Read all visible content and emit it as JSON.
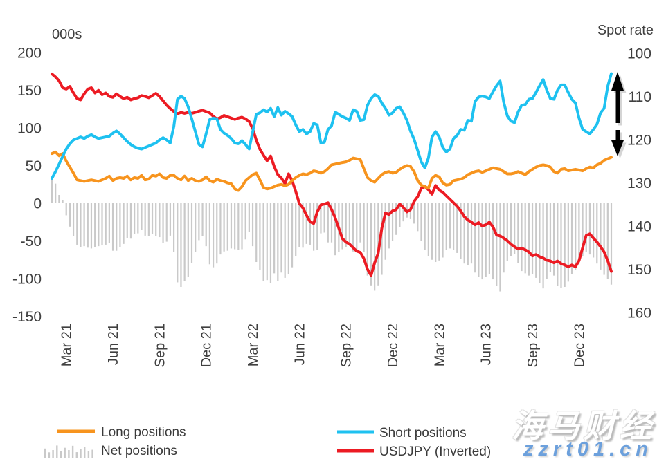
{
  "watermark": {
    "line1": "海马财经",
    "line2": "zzrt01.cn",
    "accent_color": "#6ca0dc"
  },
  "legend": {
    "long_label": "Long positions",
    "net_label": "Net positions",
    "short_label": "Short positions",
    "usdjpy_label": "USDJPY (Inverted)"
  },
  "colors": {
    "long": "#f7941e",
    "short": "#1ec1f0",
    "usdjpy": "#ec1b23",
    "net_bars": "#c9c9c9",
    "text": "#404040",
    "arrow": "#000000"
  },
  "chart_data": {
    "type": "line",
    "title": "",
    "left_axis_title": "000s",
    "right_axis_title": "Spot rate",
    "x_unit": "weekly, Feb 2021 - Feb 2024",
    "x_tick_labels": [
      "Mar 21",
      "Jun 21",
      "Sep 21",
      "Dec 21",
      "Mar 22",
      "Jun 22",
      "Sep 22",
      "Dec 22",
      "Mar 23",
      "Jun 23",
      "Sep 23",
      "Dec 23"
    ],
    "x_tick_indices": [
      4,
      17,
      30,
      43,
      56,
      69,
      82,
      95,
      108,
      121,
      134,
      147
    ],
    "left_axis": {
      "tick_values": [
        200,
        150,
        100,
        50,
        0,
        -50,
        -100,
        -150
      ],
      "range": [
        -175,
        200
      ],
      "grid": false
    },
    "right_axis": {
      "tick_values": [
        100,
        110,
        120,
        130,
        140,
        150,
        160
      ],
      "range": [
        100,
        163
      ],
      "inverted_note": "USDJPY plotted on inverted spot scale",
      "grid": false
    },
    "series": [
      {
        "name": "Net positions",
        "type": "bar",
        "axis": "left",
        "color": "#c9c9c9",
        "values": [
          33,
          26,
          11,
          4,
          -16,
          -31,
          -44,
          -55,
          -58,
          -57,
          -59,
          -60,
          -58,
          -57,
          -56,
          -55,
          -53,
          -63,
          -63,
          -58,
          -54,
          -46,
          -47,
          -41,
          -40,
          -35,
          -43,
          -44,
          -41,
          -44,
          -45,
          -53,
          -51,
          -43,
          -65,
          -105,
          -111,
          -103,
          -98,
          -79,
          -65,
          -49,
          -44,
          -57,
          -81,
          -85,
          -80,
          -68,
          -64,
          -63,
          -60,
          -61,
          -62,
          -61,
          -48,
          -38,
          -57,
          -78,
          -89,
          -103,
          -102,
          -106,
          -93,
          -103,
          -92,
          -99,
          -94,
          -85,
          -70,
          -58,
          -59,
          -54,
          -55,
          -63,
          -62,
          -40,
          -39,
          -52,
          -52,
          -69,
          -65,
          -61,
          -58,
          -53,
          -64,
          -63,
          -52,
          -65,
          -96,
          -109,
          -116,
          -109,
          -95,
          -75,
          -60,
          -50,
          -42,
          -32,
          -24,
          -19,
          -21,
          -27,
          -37,
          -50,
          -62,
          -70,
          -75,
          -78,
          -76,
          -72,
          -62,
          -60,
          -62,
          -66,
          -74,
          -80,
          -82,
          -80,
          -92,
          -98,
          -101,
          -98,
          -94,
          -101,
          -110,
          -117,
          -92,
          -77,
          -70,
          -67,
          -79,
          -90,
          -93,
          -96,
          -94,
          -99,
          -106,
          -113,
          -100,
          -91,
          -96,
          -110,
          -112,
          -111,
          -104,
          -94,
          -88,
          -80,
          -70,
          -65,
          -68,
          -72,
          -80,
          -88,
          -95,
          -100,
          -108
        ]
      },
      {
        "name": "USDJPY (Inverted)",
        "type": "line",
        "axis": "right",
        "color": "#ec1b23",
        "values": [
          104.8,
          105.5,
          106.4,
          108.0,
          108.3,
          107.7,
          109.2,
          110.5,
          110.8,
          109.4,
          108.3,
          108.0,
          109.2,
          108.6,
          109.6,
          109.2,
          110.0,
          110.2,
          109.4,
          110.0,
          110.5,
          110.2,
          110.8,
          110.5,
          110.3,
          109.8,
          110.0,
          110.3,
          109.8,
          109.3,
          110.0,
          111.0,
          112.0,
          112.8,
          113.5,
          114.0,
          113.7,
          113.9,
          113.7,
          113.9,
          113.7,
          113.4,
          113.2,
          113.5,
          113.8,
          114.6,
          115.2,
          114.9,
          114.4,
          114.7,
          115.0,
          115.3,
          115.0,
          114.8,
          115.2,
          115.8,
          117.5,
          120.1,
          122.2,
          123.6,
          124.9,
          123.8,
          126.2,
          128.1,
          128.9,
          130.2,
          127.9,
          129.5,
          132.0,
          134.8,
          135.8,
          137.5,
          139.0,
          139.4,
          136.7,
          135.1,
          134.9,
          134.6,
          136.2,
          138.1,
          140.5,
          142.9,
          143.7,
          144.2,
          145.0,
          145.8,
          146.1,
          147.5,
          150.0,
          151.4,
          148.5,
          146.3,
          140.5,
          137.0,
          137.3,
          136.5,
          136.2,
          134.9,
          135.7,
          136.7,
          136.2,
          134.3,
          133.2,
          131.3,
          130.8,
          131.6,
          132.6,
          130.6,
          131.7,
          132.2,
          133.0,
          133.8,
          134.6,
          135.4,
          136.5,
          137.8,
          138.6,
          139.1,
          139.7,
          139.2,
          140.0,
          139.7,
          139.1,
          140.2,
          142.1,
          142.3,
          142.8,
          143.4,
          144.2,
          144.8,
          145.3,
          145.1,
          145.5,
          146.0,
          146.9,
          146.6,
          147.1,
          147.4,
          147.9,
          148.1,
          148.5,
          148.1,
          148.7,
          149.0,
          149.4,
          149.0,
          149.4,
          148.0,
          145.0,
          142.2,
          141.8,
          142.8,
          143.7,
          144.8,
          146.0,
          148.0,
          150.5
        ]
      },
      {
        "name": "Long positions",
        "type": "line",
        "axis": "left",
        "color": "#f7941e",
        "values": [
          66,
          68,
          63,
          66,
          56,
          48,
          40,
          31,
          30,
          29,
          30,
          31,
          30,
          29,
          31,
          33,
          36,
          30,
          33,
          34,
          33,
          36,
          31,
          34,
          33,
          37,
          31,
          32,
          37,
          36,
          39,
          34,
          33,
          37,
          37,
          33,
          31,
          36,
          30,
          33,
          30,
          29,
          31,
          35,
          30,
          28,
          32,
          30,
          29,
          27,
          26,
          19,
          17,
          22,
          30,
          34,
          38,
          40,
          31,
          21,
          19,
          20,
          22,
          24,
          25,
          23,
          25,
          30,
          34,
          37,
          39,
          38,
          40,
          43,
          42,
          40,
          42,
          46,
          51,
          52,
          53,
          54,
          55,
          57,
          60,
          59,
          58,
          46,
          34,
          30,
          28,
          33,
          38,
          41,
          42,
          40,
          41,
          45,
          48,
          50,
          49,
          42,
          30,
          24,
          22,
          20,
          33,
          37,
          35,
          27,
          24,
          25,
          30,
          31,
          32,
          34,
          38,
          40,
          42,
          43,
          41,
          43,
          45,
          47,
          46,
          45,
          42,
          39,
          39,
          40,
          42,
          40,
          38,
          42,
          45,
          48,
          50,
          51,
          50,
          48,
          42,
          40,
          45,
          46,
          43,
          44,
          45,
          44,
          43,
          46,
          48,
          47,
          51,
          53,
          57,
          59,
          61
        ]
      },
      {
        "name": "Short positions",
        "type": "line",
        "axis": "left",
        "color": "#1ec1f0",
        "values": [
          33,
          42,
          52,
          62,
          72,
          79,
          84,
          86,
          88,
          86,
          89,
          91,
          88,
          86,
          87,
          88,
          89,
          93,
          96,
          92,
          87,
          82,
          78,
          75,
          73,
          72,
          74,
          76,
          78,
          80,
          84,
          87,
          84,
          80,
          102,
          138,
          142,
          139,
          128,
          112,
          95,
          78,
          75,
          92,
          111,
          113,
          112,
          98,
          93,
          90,
          86,
          80,
          79,
          83,
          78,
          72,
          95,
          118,
          120,
          124,
          121,
          126,
          115,
          127,
          117,
          122,
          119,
          115,
          104,
          95,
          98,
          92,
          95,
          106,
          104,
          80,
          81,
          98,
          103,
          121,
          118,
          115,
          113,
          110,
          124,
          122,
          110,
          111,
          130,
          139,
          144,
          142,
          133,
          126,
          117,
          120,
          126,
          128,
          120,
          110,
          96,
          85,
          70,
          55,
          47,
          60,
          88,
          95,
          88,
          74,
          68,
          72,
          86,
          90,
          98,
          97,
          110,
          109,
          135,
          141,
          142,
          141,
          139,
          148,
          156,
          162,
          134,
          116,
          109,
          107,
          121,
          130,
          131,
          138,
          139,
          147,
          156,
          164,
          150,
          139,
          138,
          150,
          157,
          157,
          147,
          138,
          133,
          113,
          98,
          95,
          92,
          98,
          105,
          120,
          126,
          155,
          172
        ]
      }
    ],
    "annotations": [
      {
        "name": "double-arrow",
        "description": "black up/down arrow between 110 and 125 on spot axis near latest data"
      }
    ],
    "legend_position": "bottom"
  }
}
